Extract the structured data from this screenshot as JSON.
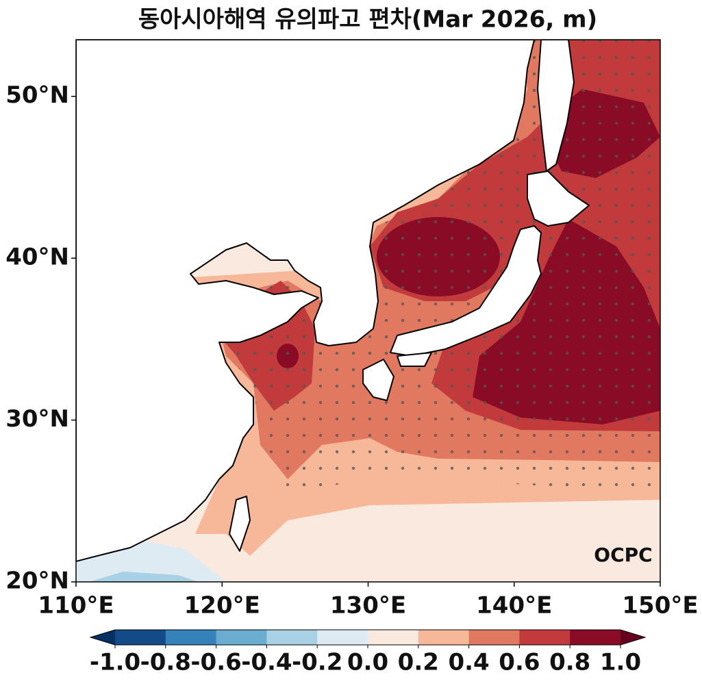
{
  "title": "동아시아해역 유의파고 편차(Mar 2026, m)",
  "logo": "OCPC",
  "map": {
    "xlim": [
      110,
      150
    ],
    "ylim": [
      20,
      53.5
    ],
    "xticks": [
      {
        "value": 110,
        "label": "110°E"
      },
      {
        "value": 120,
        "label": "120°E"
      },
      {
        "value": 130,
        "label": "130°E"
      },
      {
        "value": 140,
        "label": "140°E"
      },
      {
        "value": 150,
        "label": "150°E"
      }
    ],
    "yticks": [
      {
        "value": 20,
        "label": "20°N"
      },
      {
        "value": 30,
        "label": "30°N"
      },
      {
        "value": 40,
        "label": "40°N"
      },
      {
        "value": 50,
        "label": "50°N"
      }
    ]
  },
  "colorbar": {
    "ticks": [
      {
        "value": -1.0,
        "label": "-1.0"
      },
      {
        "value": -0.8,
        "label": "-0.8"
      },
      {
        "value": -0.6,
        "label": "-0.6"
      },
      {
        "value": -0.4,
        "label": "-0.4"
      },
      {
        "value": -0.2,
        "label": "-0.2"
      },
      {
        "value": 0,
        "label": "0.0"
      },
      {
        "value": 0.2,
        "label": "0.2"
      },
      {
        "value": 0.4,
        "label": "0.4"
      },
      {
        "value": 0.6,
        "label": "0.6"
      },
      {
        "value": 0.8,
        "label": "0.8"
      },
      {
        "value": 1.0,
        "label": "1.0"
      }
    ],
    "colors": [
      "#134b87",
      "#3581b9",
      "#6bacd1",
      "#a9d1e5",
      "#deebf2",
      "#f9e9df",
      "#f7b799",
      "#e17860",
      "#c13b3c",
      "#8a0b25"
    ],
    "under_color": "#053061",
    "over_color": "#67001f"
  }
}
